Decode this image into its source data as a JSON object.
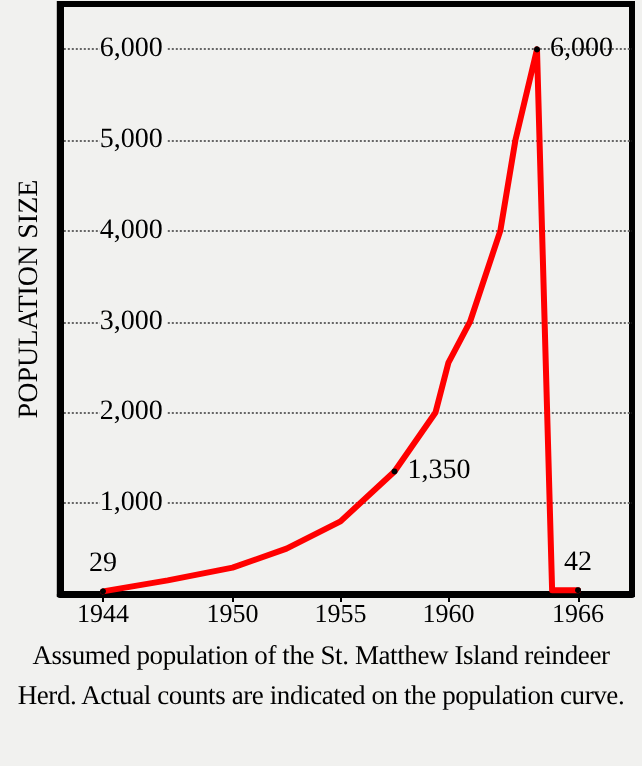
{
  "chart_data": {
    "type": "line",
    "ylabel": "POPULATION SIZE",
    "annotations": [
      "Assumed population of the St. Matthew Island reindeer Herd.  Actual counts are indicated on the population curve."
    ],
    "x": [
      1944,
      1947,
      1950,
      1952.5,
      1955,
      1957.5,
      1959.4,
      1960,
      1961,
      1962.4,
      1963.1,
      1964.1,
      1964.8,
      1966
    ],
    "series": [
      {
        "color": "#ff0000",
        "values": [
          29,
          150,
          290,
          500,
          800,
          1350,
          2000,
          2550,
          3000,
          4000,
          5000,
          6000,
          42,
          42
        ],
        "value_labels": [
          "29",
          null,
          null,
          null,
          null,
          "1,350",
          null,
          null,
          null,
          null,
          null,
          "6,000",
          null,
          "42"
        ]
      }
    ],
    "xlim": [
      1942,
      1968.5
    ],
    "xticks": [
      1944,
      1950,
      1955,
      1960,
      1966
    ],
    "ylim": [
      0,
      6500
    ],
    "yticks": [
      {
        "value": 1000,
        "label": "1,000"
      },
      {
        "value": 2000,
        "label": "2,000"
      },
      {
        "value": 3000,
        "label": "3,000"
      },
      {
        "value": 4000,
        "label": "4,000"
      },
      {
        "value": 5000,
        "label": "5,000"
      },
      {
        "value": 6000,
        "label": "6,000"
      }
    ],
    "grid": "y",
    "line_style": "solid"
  }
}
